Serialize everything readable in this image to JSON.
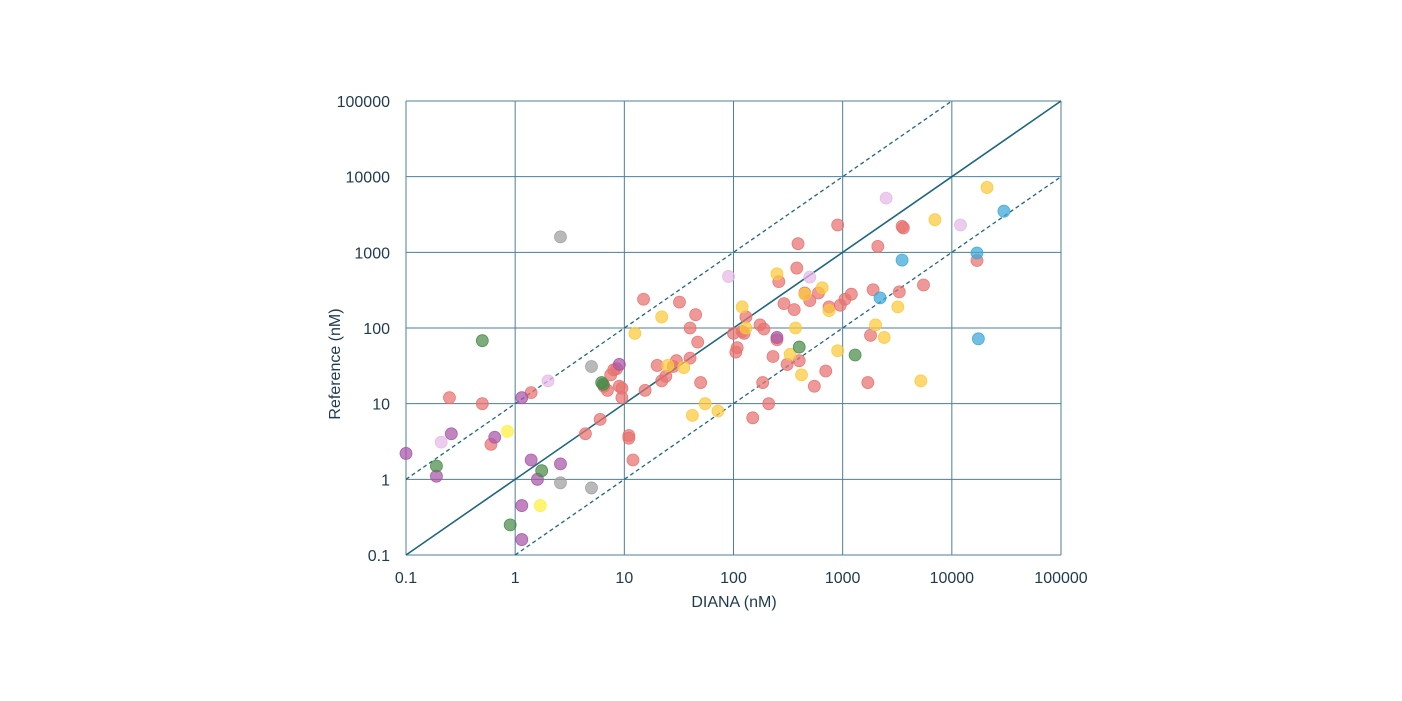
{
  "chart_data": {
    "type": "scatter",
    "title": "",
    "xlabel": "DIANA (nM)",
    "ylabel": "Reference  (nM)",
    "xscale": "log",
    "yscale": "log",
    "xlim": [
      0.1,
      100000
    ],
    "ylim": [
      0.1,
      100000
    ],
    "x_ticks": [
      "0.1",
      "1",
      "10",
      "100",
      "1000",
      "10000",
      "100000"
    ],
    "y_ticks": [
      "0.1",
      "1",
      "10",
      "100",
      "1000",
      "10000",
      "100000"
    ],
    "grid": true,
    "legend": "none",
    "reference_lines": [
      {
        "style": "solid",
        "relation": "y = x"
      },
      {
        "style": "dashed",
        "relation": "y = 10x"
      },
      {
        "style": "dashed",
        "relation": "y = x/10"
      }
    ],
    "line_color": "#1f6680",
    "grid_color": "#4d7f99",
    "series": [
      {
        "color": "#e8716f",
        "points": [
          [
            0.25,
            12
          ],
          [
            0.5,
            10
          ],
          [
            0.6,
            2.9
          ],
          [
            1.4,
            14
          ],
          [
            4.4,
            4.0
          ],
          [
            6,
            6.2
          ],
          [
            6.5,
            17
          ],
          [
            7,
            15
          ],
          [
            7.5,
            24
          ],
          [
            8,
            28
          ],
          [
            8.5,
            29
          ],
          [
            9,
            17
          ],
          [
            9.5,
            16
          ],
          [
            9.5,
            12
          ],
          [
            11,
            3.8
          ],
          [
            11,
            3.5
          ],
          [
            12,
            1.8
          ],
          [
            15,
            240
          ],
          [
            15.5,
            15
          ],
          [
            20,
            32
          ],
          [
            22,
            20
          ],
          [
            24,
            23
          ],
          [
            28,
            31
          ],
          [
            30,
            37
          ],
          [
            32,
            220
          ],
          [
            40,
            40
          ],
          [
            40,
            100
          ],
          [
            45,
            150
          ],
          [
            47,
            65
          ],
          [
            50,
            19
          ],
          [
            100,
            85
          ],
          [
            105,
            48
          ],
          [
            108,
            55
          ],
          [
            120,
            90
          ],
          [
            125,
            85
          ],
          [
            130,
            140
          ],
          [
            150,
            6.5
          ],
          [
            175,
            110
          ],
          [
            185,
            19
          ],
          [
            190,
            97
          ],
          [
            210,
            10
          ],
          [
            230,
            42
          ],
          [
            250,
            70
          ],
          [
            260,
            410
          ],
          [
            290,
            210
          ],
          [
            310,
            33
          ],
          [
            360,
            175
          ],
          [
            380,
            620
          ],
          [
            390,
            1300
          ],
          [
            400,
            37
          ],
          [
            450,
            290
          ],
          [
            500,
            230
          ],
          [
            550,
            17
          ],
          [
            600,
            290
          ],
          [
            700,
            27
          ],
          [
            750,
            190
          ],
          [
            900,
            2300
          ],
          [
            950,
            200
          ],
          [
            1050,
            240
          ],
          [
            1200,
            280
          ],
          [
            1700,
            19
          ],
          [
            1800,
            80
          ],
          [
            1900,
            320
          ],
          [
            2100,
            1200
          ],
          [
            3300,
            300
          ],
          [
            3500,
            2200
          ],
          [
            3600,
            2100
          ],
          [
            5500,
            370
          ],
          [
            17000,
            780
          ]
        ]
      },
      {
        "color": "#fcc93a",
        "points": [
          [
            12.5,
            85
          ],
          [
            22,
            140
          ],
          [
            25,
            32
          ],
          [
            35,
            30
          ],
          [
            42,
            7
          ],
          [
            55,
            10
          ],
          [
            72,
            8
          ],
          [
            120,
            190
          ],
          [
            130,
            100
          ],
          [
            250,
            520
          ],
          [
            330,
            45
          ],
          [
            370,
            100
          ],
          [
            420,
            24
          ],
          [
            450,
            280
          ],
          [
            650,
            340
          ],
          [
            750,
            170
          ],
          [
            900,
            50
          ],
          [
            2000,
            110
          ],
          [
            2400,
            75
          ],
          [
            3200,
            190
          ],
          [
            5200,
            20
          ],
          [
            7000,
            2700
          ],
          [
            21000,
            7200
          ]
        ]
      },
      {
        "color": "#fff03a",
        "points": [
          [
            0.85,
            4.3
          ],
          [
            1.7,
            0.45
          ]
        ]
      },
      {
        "color": "#a854a8",
        "points": [
          [
            0.1,
            2.2
          ],
          [
            0.19,
            1.1
          ],
          [
            0.26,
            4.0
          ],
          [
            0.65,
            3.6
          ],
          [
            1.15,
            12
          ],
          [
            1.15,
            0.45
          ],
          [
            1.15,
            0.16
          ],
          [
            1.4,
            1.8
          ],
          [
            1.6,
            1.0
          ],
          [
            2.6,
            1.6
          ],
          [
            9,
            33
          ],
          [
            250,
            75
          ]
        ]
      },
      {
        "color": "#e6b8e6",
        "points": [
          [
            0.21,
            3.1
          ],
          [
            2.0,
            20
          ],
          [
            90,
            480
          ],
          [
            500,
            470
          ],
          [
            2500,
            5200
          ],
          [
            12000,
            2300
          ]
        ]
      },
      {
        "color": "#4a8a4a",
        "points": [
          [
            0.19,
            1.5
          ],
          [
            0.5,
            68
          ],
          [
            0.9,
            0.25
          ],
          [
            1.75,
            1.3
          ],
          [
            6.2,
            19
          ],
          [
            6.4,
            18
          ],
          [
            400,
            56
          ],
          [
            1300,
            44
          ]
        ]
      },
      {
        "color": "#9e9e9e",
        "points": [
          [
            2.6,
            1600
          ],
          [
            2.6,
            0.9
          ],
          [
            5,
            31
          ],
          [
            5,
            0.77
          ]
        ]
      },
      {
        "color": "#3aa8d8",
        "points": [
          [
            2200,
            250
          ],
          [
            3500,
            790
          ],
          [
            17000,
            980
          ],
          [
            17500,
            72
          ],
          [
            30000,
            3500
          ]
        ]
      }
    ]
  }
}
